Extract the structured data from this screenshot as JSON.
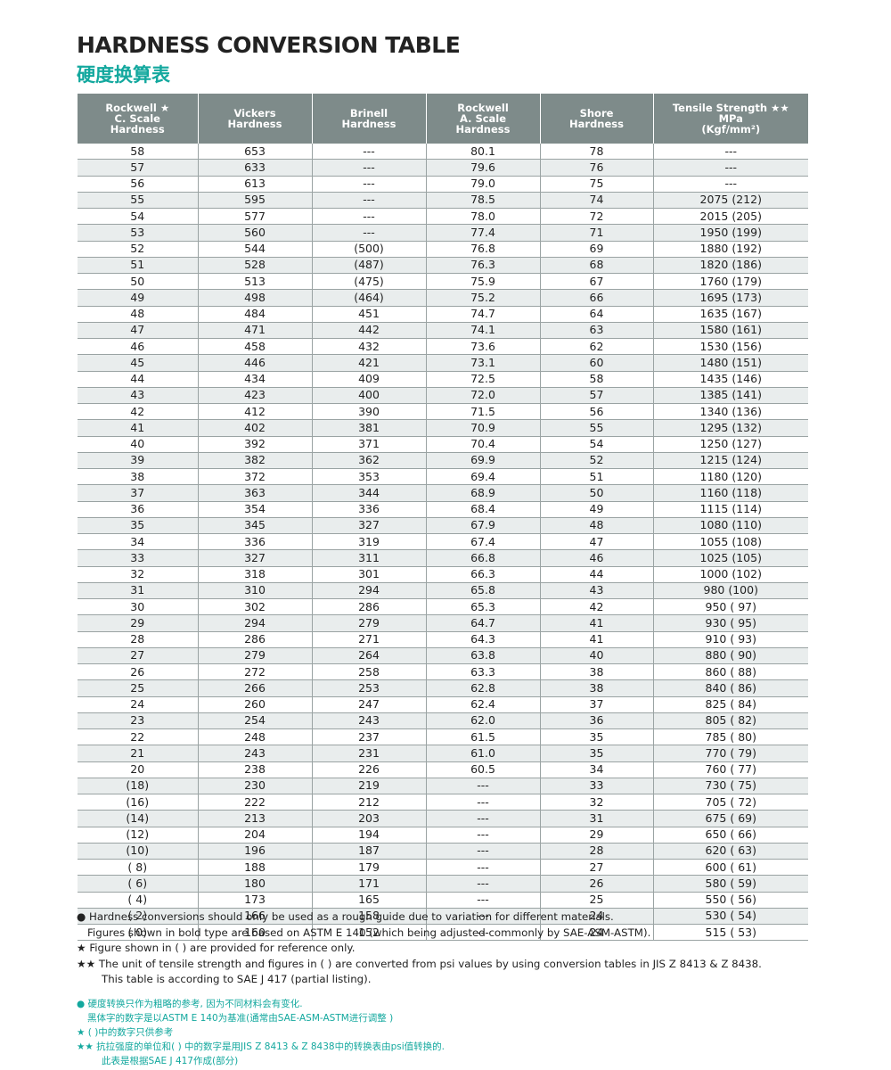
{
  "header": {
    "title": "HARDNESS CONVERSION TABLE",
    "subtitle": "硬度换算表"
  },
  "table": {
    "columns": [
      [
        "Rockwell ★",
        "C. Scale",
        "Hardness"
      ],
      [
        "Vickers",
        "Hardness"
      ],
      [
        "Brinell",
        "Hardness"
      ],
      [
        "Rockwell",
        "A. Scale",
        "Hardness"
      ],
      [
        "Shore",
        "Hardness"
      ],
      [
        "Tensile Strength ★★",
        "MPa",
        "(Kgf/mm²)"
      ]
    ],
    "rows": [
      [
        "58",
        "653",
        "---",
        "80.1",
        "78",
        "---"
      ],
      [
        "57",
        "633",
        "---",
        "79.6",
        "76",
        "---"
      ],
      [
        "56",
        "613",
        "---",
        "79.0",
        "75",
        "---"
      ],
      [
        "55",
        "595",
        "---",
        "78.5",
        "74",
        "2075 (212)"
      ],
      [
        "54",
        "577",
        "---",
        "78.0",
        "72",
        "2015 (205)"
      ],
      [
        "53",
        "560",
        "---",
        "77.4",
        "71",
        "1950 (199)"
      ],
      [
        "52",
        "544",
        "(500)",
        "76.8",
        "69",
        "1880 (192)"
      ],
      [
        "51",
        "528",
        "(487)",
        "76.3",
        "68",
        "1820 (186)"
      ],
      [
        "50",
        "513",
        "(475)",
        "75.9",
        "67",
        "1760 (179)"
      ],
      [
        "49",
        "498",
        "(464)",
        "75.2",
        "66",
        "1695 (173)"
      ],
      [
        "48",
        "484",
        "451",
        "74.7",
        "64",
        "1635 (167)"
      ],
      [
        "47",
        "471",
        "442",
        "74.1",
        "63",
        "1580 (161)"
      ],
      [
        "46",
        "458",
        "432",
        "73.6",
        "62",
        "1530 (156)"
      ],
      [
        "45",
        "446",
        "421",
        "73.1",
        "60",
        "1480 (151)"
      ],
      [
        "44",
        "434",
        "409",
        "72.5",
        "58",
        "1435 (146)"
      ],
      [
        "43",
        "423",
        "400",
        "72.0",
        "57",
        "1385 (141)"
      ],
      [
        "42",
        "412",
        "390",
        "71.5",
        "56",
        "1340 (136)"
      ],
      [
        "41",
        "402",
        "381",
        "70.9",
        "55",
        "1295 (132)"
      ],
      [
        "40",
        "392",
        "371",
        "70.4",
        "54",
        "1250 (127)"
      ],
      [
        "39",
        "382",
        "362",
        "69.9",
        "52",
        "1215 (124)"
      ],
      [
        "38",
        "372",
        "353",
        "69.4",
        "51",
        "1180 (120)"
      ],
      [
        "37",
        "363",
        "344",
        "68.9",
        "50",
        "1160 (118)"
      ],
      [
        "36",
        "354",
        "336",
        "68.4",
        "49",
        "1115 (114)"
      ],
      [
        "35",
        "345",
        "327",
        "67.9",
        "48",
        "1080 (110)"
      ],
      [
        "34",
        "336",
        "319",
        "67.4",
        "47",
        "1055 (108)"
      ],
      [
        "33",
        "327",
        "311",
        "66.8",
        "46",
        "1025 (105)"
      ],
      [
        "32",
        "318",
        "301",
        "66.3",
        "44",
        "1000 (102)"
      ],
      [
        "31",
        "310",
        "294",
        "65.8",
        "43",
        "980 (100)"
      ],
      [
        "30",
        "302",
        "286",
        "65.3",
        "42",
        "950 ( 97)"
      ],
      [
        "29",
        "294",
        "279",
        "64.7",
        "41",
        "930 ( 95)"
      ],
      [
        "28",
        "286",
        "271",
        "64.3",
        "41",
        "910 ( 93)"
      ],
      [
        "27",
        "279",
        "264",
        "63.8",
        "40",
        "880 ( 90)"
      ],
      [
        "26",
        "272",
        "258",
        "63.3",
        "38",
        "860 ( 88)"
      ],
      [
        "25",
        "266",
        "253",
        "62.8",
        "38",
        "840 ( 86)"
      ],
      [
        "24",
        "260",
        "247",
        "62.4",
        "37",
        "825 ( 84)"
      ],
      [
        "23",
        "254",
        "243",
        "62.0",
        "36",
        "805 ( 82)"
      ],
      [
        "22",
        "248",
        "237",
        "61.5",
        "35",
        "785 ( 80)"
      ],
      [
        "21",
        "243",
        "231",
        "61.0",
        "35",
        "770 ( 79)"
      ],
      [
        "20",
        "238",
        "226",
        "60.5",
        "34",
        "760 ( 77)"
      ],
      [
        "(18)",
        "230",
        "219",
        "---",
        "33",
        "730 ( 75)"
      ],
      [
        "(16)",
        "222",
        "212",
        "---",
        "32",
        "705 ( 72)"
      ],
      [
        "(14)",
        "213",
        "203",
        "---",
        "31",
        "675 ( 69)"
      ],
      [
        "(12)",
        "204",
        "194",
        "---",
        "29",
        "650 ( 66)"
      ],
      [
        "(10)",
        "196",
        "187",
        "---",
        "28",
        "620 ( 63)"
      ],
      [
        "( 8)",
        "188",
        "179",
        "---",
        "27",
        "600 ( 61)"
      ],
      [
        "( 6)",
        "180",
        "171",
        "---",
        "26",
        "580 ( 59)"
      ],
      [
        "( 4)",
        "173",
        "165",
        "---",
        "25",
        "550 ( 56)"
      ],
      [
        "( 2)",
        "166",
        "158",
        "---",
        "24",
        "530 ( 54)"
      ],
      [
        "( 0)",
        "160",
        "152",
        "---",
        "24",
        "515 ( 53)"
      ]
    ]
  },
  "notes_en": [
    {
      "marker": "●",
      "text": "Hardness conversions should only be used as a rough guide due to variation for different materials."
    },
    {
      "text": "Figures shown in bold type are based on ASTM E 140 (which being adjusted commonly by SAE-ASM-ASTM)."
    },
    {
      "marker": "★",
      "text": "Figure shown in ( ) are provided for reference only."
    },
    {
      "marker": "★★",
      "text": "The unit of tensile strength and figures in ( ) are converted from psi values by using conversion tables in JIS Z 8413 & Z 8438."
    },
    {
      "text": "This table is according to SAE J 417 (partial listing)."
    }
  ],
  "notes_cn": [
    {
      "marker": "●",
      "text": "硬度转换只作为粗略的参考, 因为不同材料会有变化."
    },
    {
      "text": "黑体字的数字是以ASTM E 140为基准(通常由SAE-ASM-ASTM进行调整 )"
    },
    {
      "marker": "★",
      "text": "( )中的数字只供参考"
    },
    {
      "marker": "★★",
      "text": "抗拉强度的单位和( ) 中的数字是用JIS Z 8413 & Z 8438中的转换表由psi值转换的."
    },
    {
      "text": "此表是根据SAE J 417作成(部分)"
    }
  ]
}
